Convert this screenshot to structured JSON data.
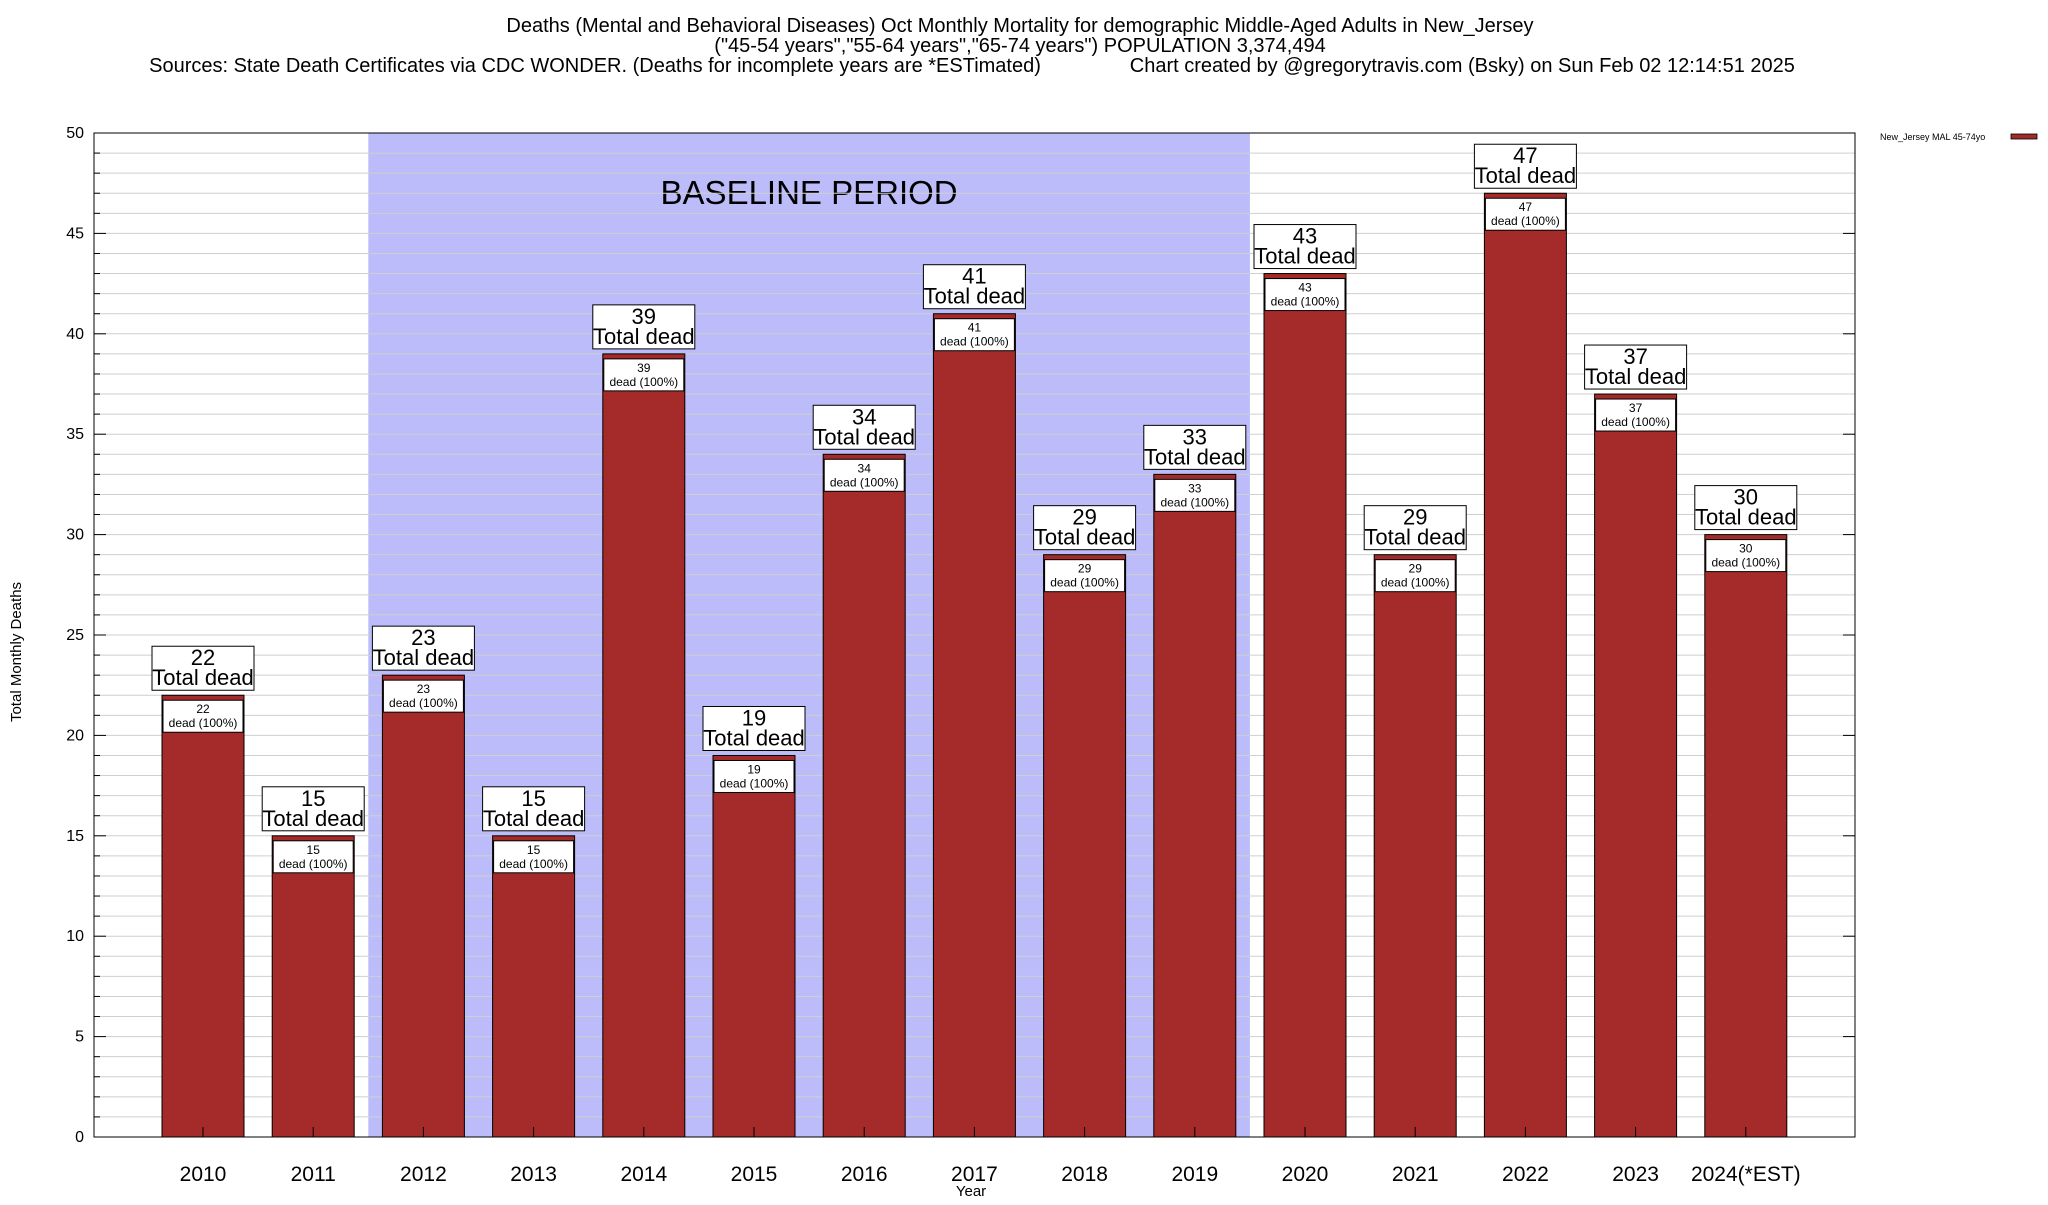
{
  "chart_data": {
    "type": "bar",
    "title_lines": [
      "Deaths (Mental and Behavioral Diseases) Oct Monthly Mortality for demographic Middle-Aged Adults in New_Jersey",
      "(\"45-54 years\",\"55-64 years\",\"65-74 years\") POPULATION 3,374,494",
      "Sources: State Death Certificates via CDC WONDER. (Deaths for incomplete years are *ESTimated)                Chart created by @gregorytravis.com (Bsky) on Sun Feb 02 12:14:51 2025"
    ],
    "xlabel": "Year",
    "ylabel": "Total Monthly Deaths",
    "ylim": [
      0,
      50
    ],
    "y_ticks": [
      0,
      5,
      10,
      15,
      20,
      25,
      30,
      35,
      40,
      45,
      50
    ],
    "minor_grid_step": 1,
    "categories": [
      "2010",
      "2011",
      "2012",
      "2013",
      "2014",
      "2015",
      "2016",
      "2017",
      "2018",
      "2019",
      "2020",
      "2021",
      "2022",
      "2023",
      "2024(*EST)"
    ],
    "series": [
      {
        "name": "New_Jersey MAL 45-74yo",
        "color": "#a52a2a",
        "values": [
          22,
          15,
          23,
          15,
          39,
          19,
          34,
          41,
          29,
          33,
          43,
          29,
          47,
          37,
          30
        ]
      }
    ],
    "bar_top_label_suffix": "Total dead",
    "bar_inner_label_suffix": "dead (100%)",
    "baseline_period": {
      "label": "BASELINE PERIOD",
      "start_category": "2012",
      "end_category": "2019",
      "color": "#bcbcfa"
    },
    "grid": true,
    "legend_position": "top-right"
  }
}
